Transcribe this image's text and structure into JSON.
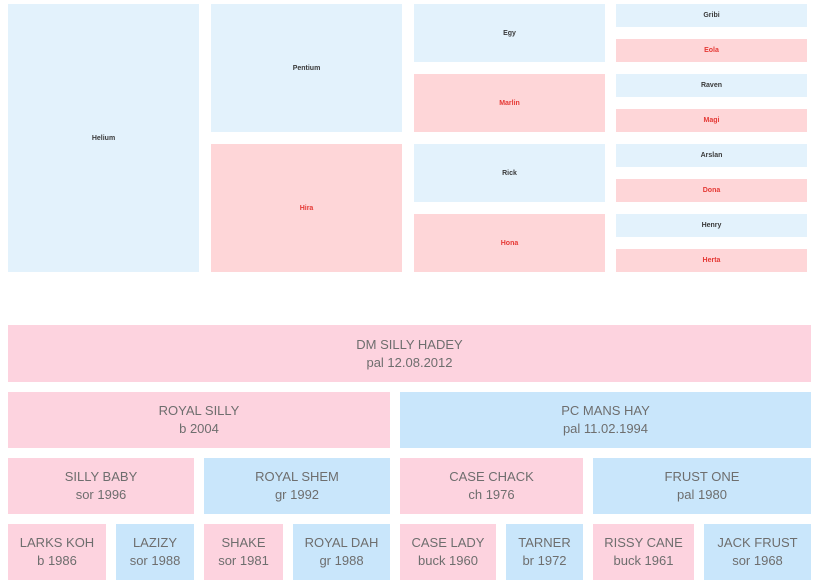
{
  "treemap": {
    "h1": {
      "label": "Helium"
    },
    "p1": {
      "label": "Pentium"
    },
    "h2": {
      "label": "Hira"
    },
    "e1": {
      "label": "Egy"
    },
    "m1": {
      "label": "Marlin"
    },
    "r1": {
      "label": "Rick"
    },
    "h3": {
      "label": "Hona"
    },
    "g1": {
      "label": "Gribi"
    },
    "e2": {
      "label": "Eola"
    },
    "r2": {
      "label": "Raven"
    },
    "m2": {
      "label": "Magi"
    },
    "a1": {
      "label": "Arslan"
    },
    "d1": {
      "label": "Dona"
    },
    "h4": {
      "label": "Henry"
    },
    "h5": {
      "label": "Herta"
    }
  },
  "pedigree": {
    "root": {
      "name": "DM SILLY HADEY",
      "detail": "pal 12.08.2012"
    },
    "sire": {
      "name": "ROYAL SILLY",
      "detail": "b 2004"
    },
    "dam": {
      "name": "PC MANS HAY",
      "detail": "pal 11.02.1994"
    },
    "ss": {
      "name": "SILLY BABY",
      "detail": "sor 1996"
    },
    "sd": {
      "name": "ROYAL SHEM",
      "detail": "gr 1992"
    },
    "ds": {
      "name": "CASE CHACK",
      "detail": "ch 1976"
    },
    "dd": {
      "name": "FRUST ONE",
      "detail": "pal 1980"
    },
    "sss": {
      "name": "LARKS KOH",
      "detail": "b 1986"
    },
    "ssd": {
      "name": "LAZIZY",
      "detail": "sor 1988"
    },
    "sds": {
      "name": "SHAKE",
      "detail": "sor 1981"
    },
    "sdd": {
      "name": "ROYAL DAH",
      "detail": "gr 1988"
    },
    "dss": {
      "name": "CASE LADY",
      "detail": "buck 1960"
    },
    "dsd": {
      "name": "TARNER",
      "detail": "br 1972"
    },
    "dds": {
      "name": "RISSY CANE",
      "detail": "buck 1961"
    },
    "ddd": {
      "name": "JACK FRUST",
      "detail": "sor 1968"
    }
  }
}
